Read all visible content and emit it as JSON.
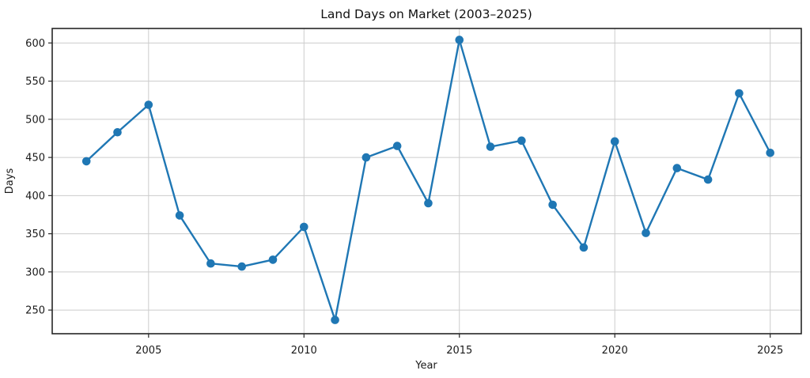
{
  "chart_data": {
    "type": "line",
    "title": "Land Days on Market (2003–2025)",
    "xlabel": "Year",
    "ylabel": "Days",
    "x": [
      2003,
      2004,
      2005,
      2006,
      2007,
      2008,
      2009,
      2010,
      2011,
      2012,
      2013,
      2014,
      2015,
      2016,
      2017,
      2018,
      2019,
      2020,
      2021,
      2022,
      2023,
      2024,
      2025
    ],
    "values": [
      445,
      483,
      519,
      374,
      311,
      307,
      316,
      359,
      237,
      450,
      465,
      390,
      604,
      464,
      472,
      388,
      332,
      471,
      351,
      436,
      421,
      534,
      456
    ],
    "series_name": "Land Days on Market",
    "xticks": [
      2005,
      2010,
      2015,
      2020,
      2025
    ],
    "yticks": [
      250,
      300,
      350,
      400,
      450,
      500,
      550,
      600
    ],
    "xlim": [
      2001.9,
      2026.0
    ],
    "ylim": [
      219,
      619
    ],
    "grid": true,
    "legend": "none",
    "marker": "circle",
    "colors": {
      "line": "#1f77b4",
      "marker": "#1f77b4",
      "grid": "#cccccc",
      "spine": "#262626",
      "text": "#1a1a1a"
    }
  }
}
